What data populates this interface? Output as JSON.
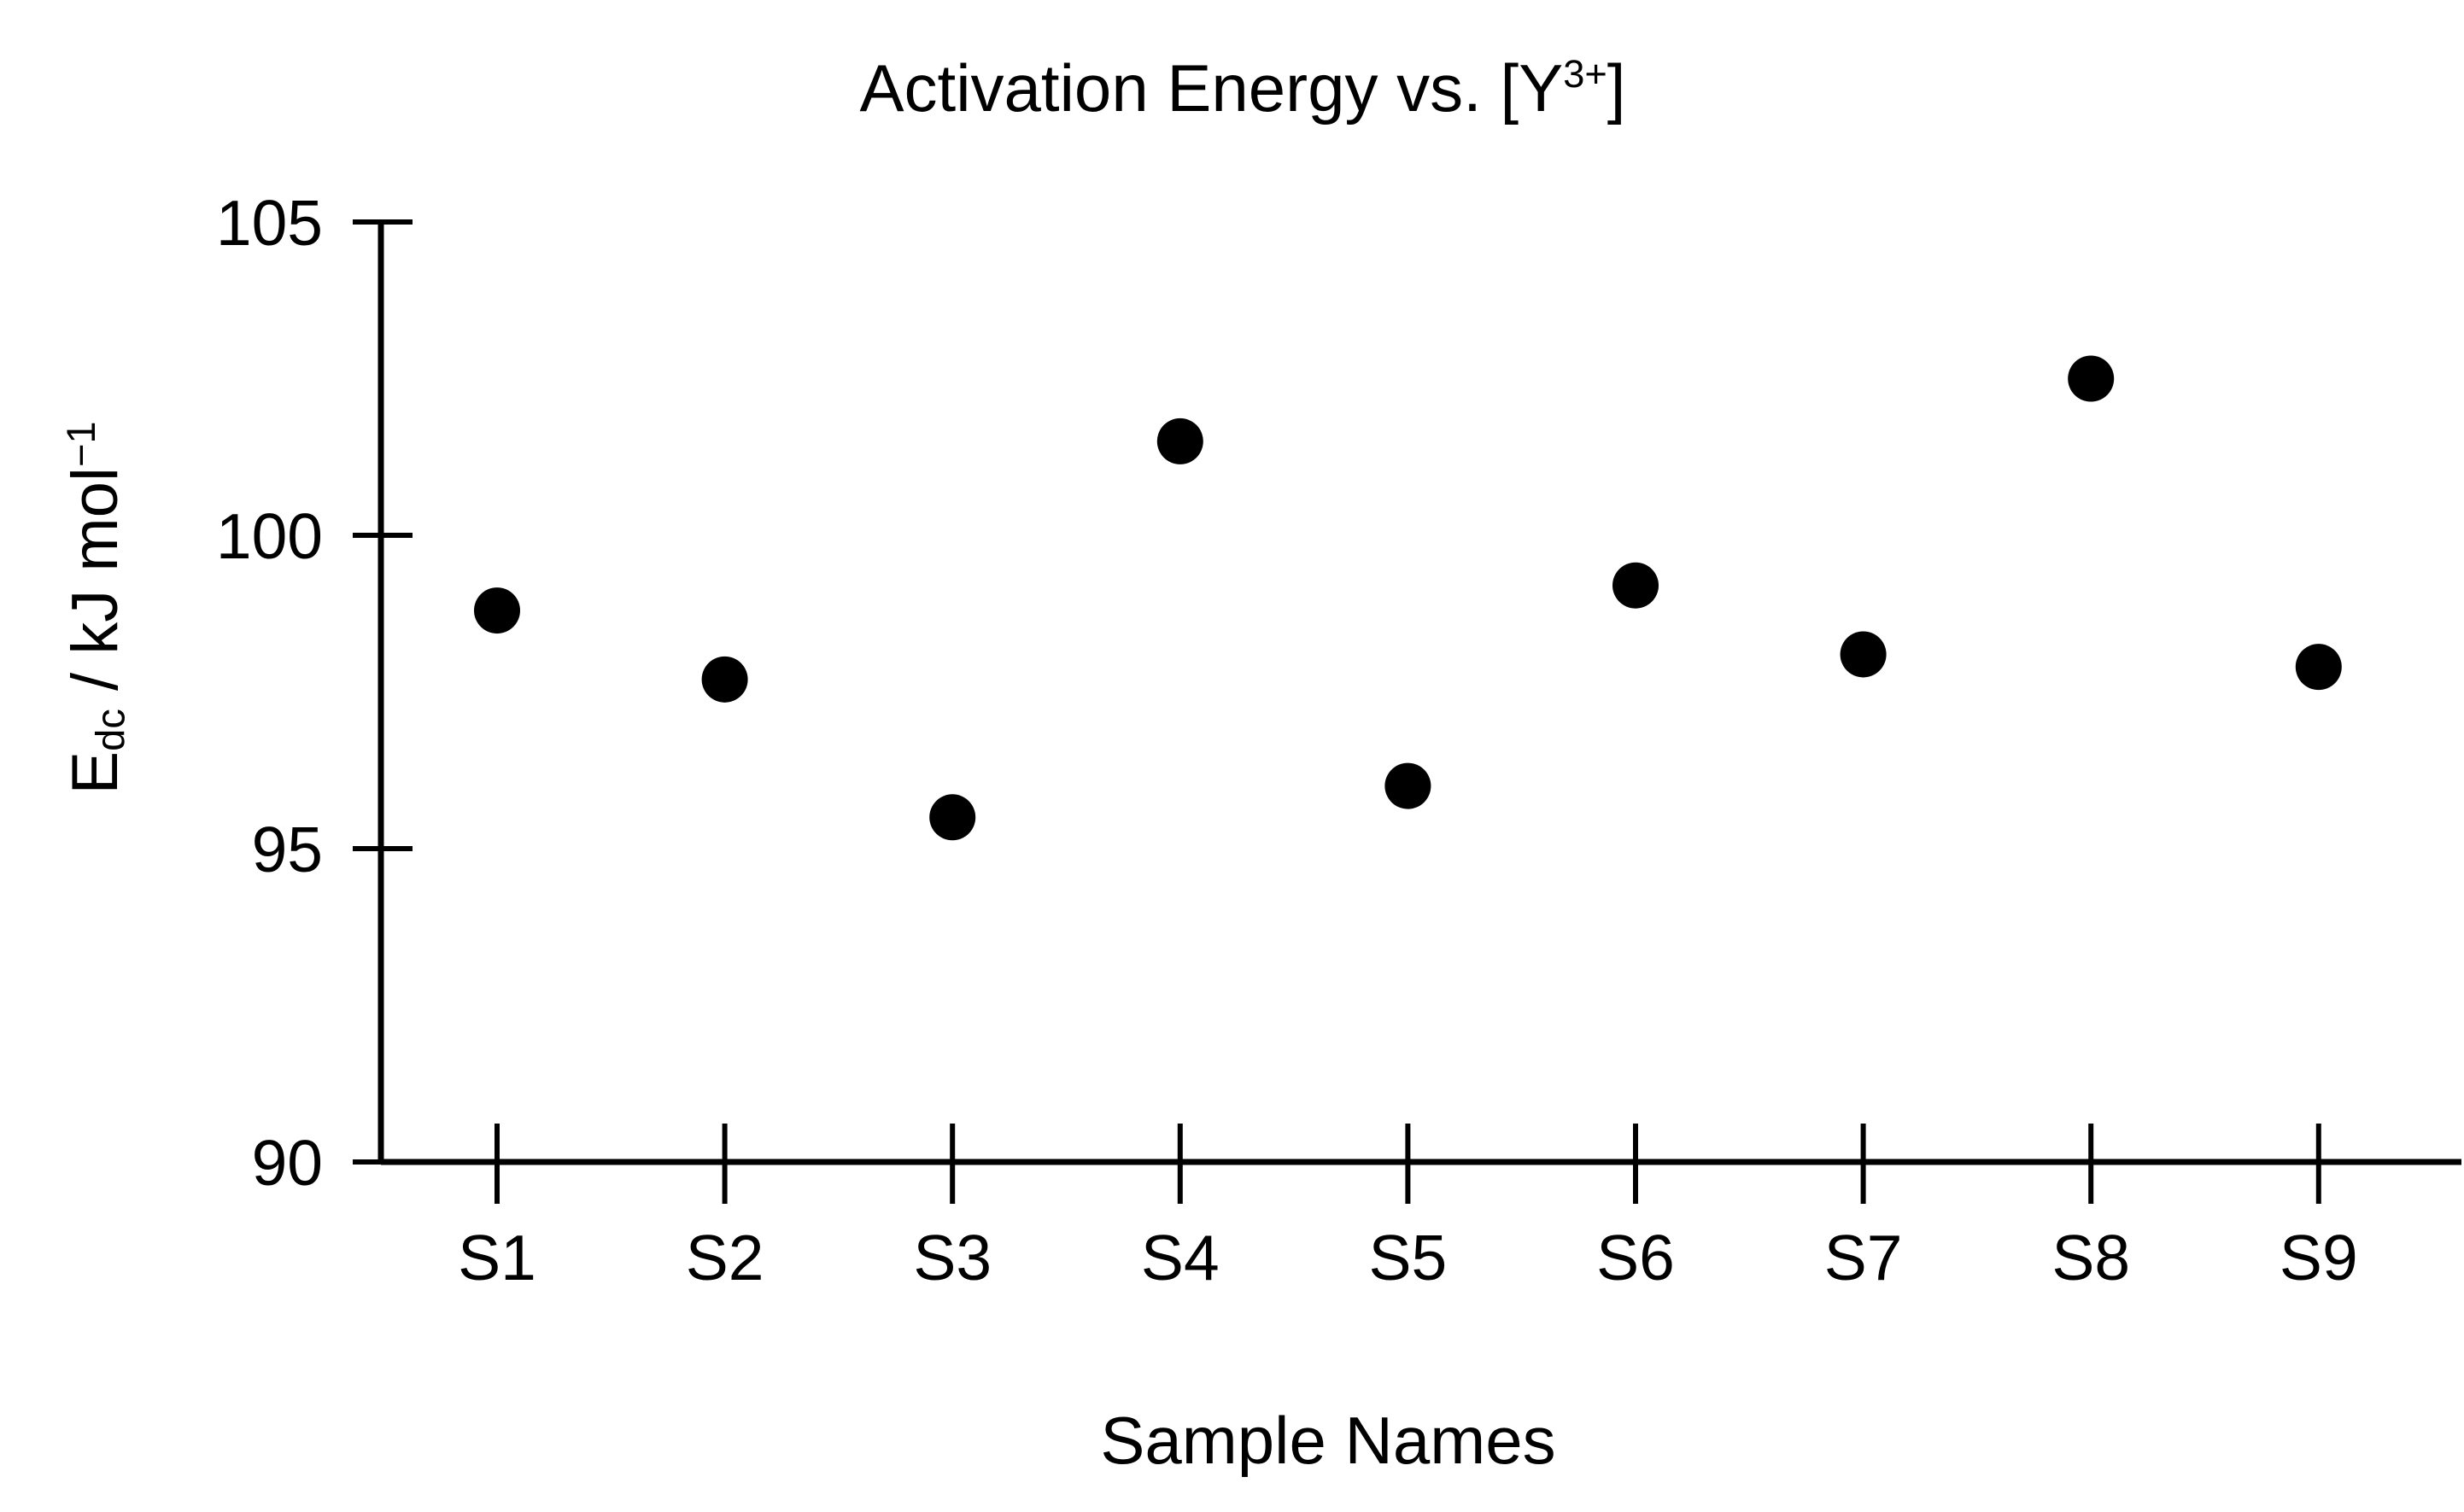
{
  "page": {
    "background_color": "#ffffff",
    "foreground_color": "#000000"
  },
  "chart_data": {
    "type": "scatter",
    "title": "Activation Energy vs. [Y³⁺]",
    "title_parts": {
      "main": "Activation Energy vs. [Y",
      "sup": "3+",
      "end": "]"
    },
    "xlabel": "Sample Names",
    "ylabel": "E_dc / kJ mol⁻¹",
    "ylabel_parts": {
      "base": "E",
      "sub": "dc",
      "mid": " / kJ mol",
      "sup": "−1"
    },
    "categories": [
      "S1",
      "S2",
      "S3",
      "S4",
      "S5",
      "S6",
      "S7",
      "S8",
      "S9"
    ],
    "values": [
      98.8,
      97.7,
      95.5,
      101.5,
      96.0,
      99.2,
      98.1,
      102.5,
      97.9
    ],
    "yticks": [
      105,
      100,
      95,
      90
    ],
    "ylim": [
      90,
      105
    ],
    "grid": false,
    "legend": null,
    "marker": {
      "shape": "circle",
      "color": "#000000"
    }
  }
}
